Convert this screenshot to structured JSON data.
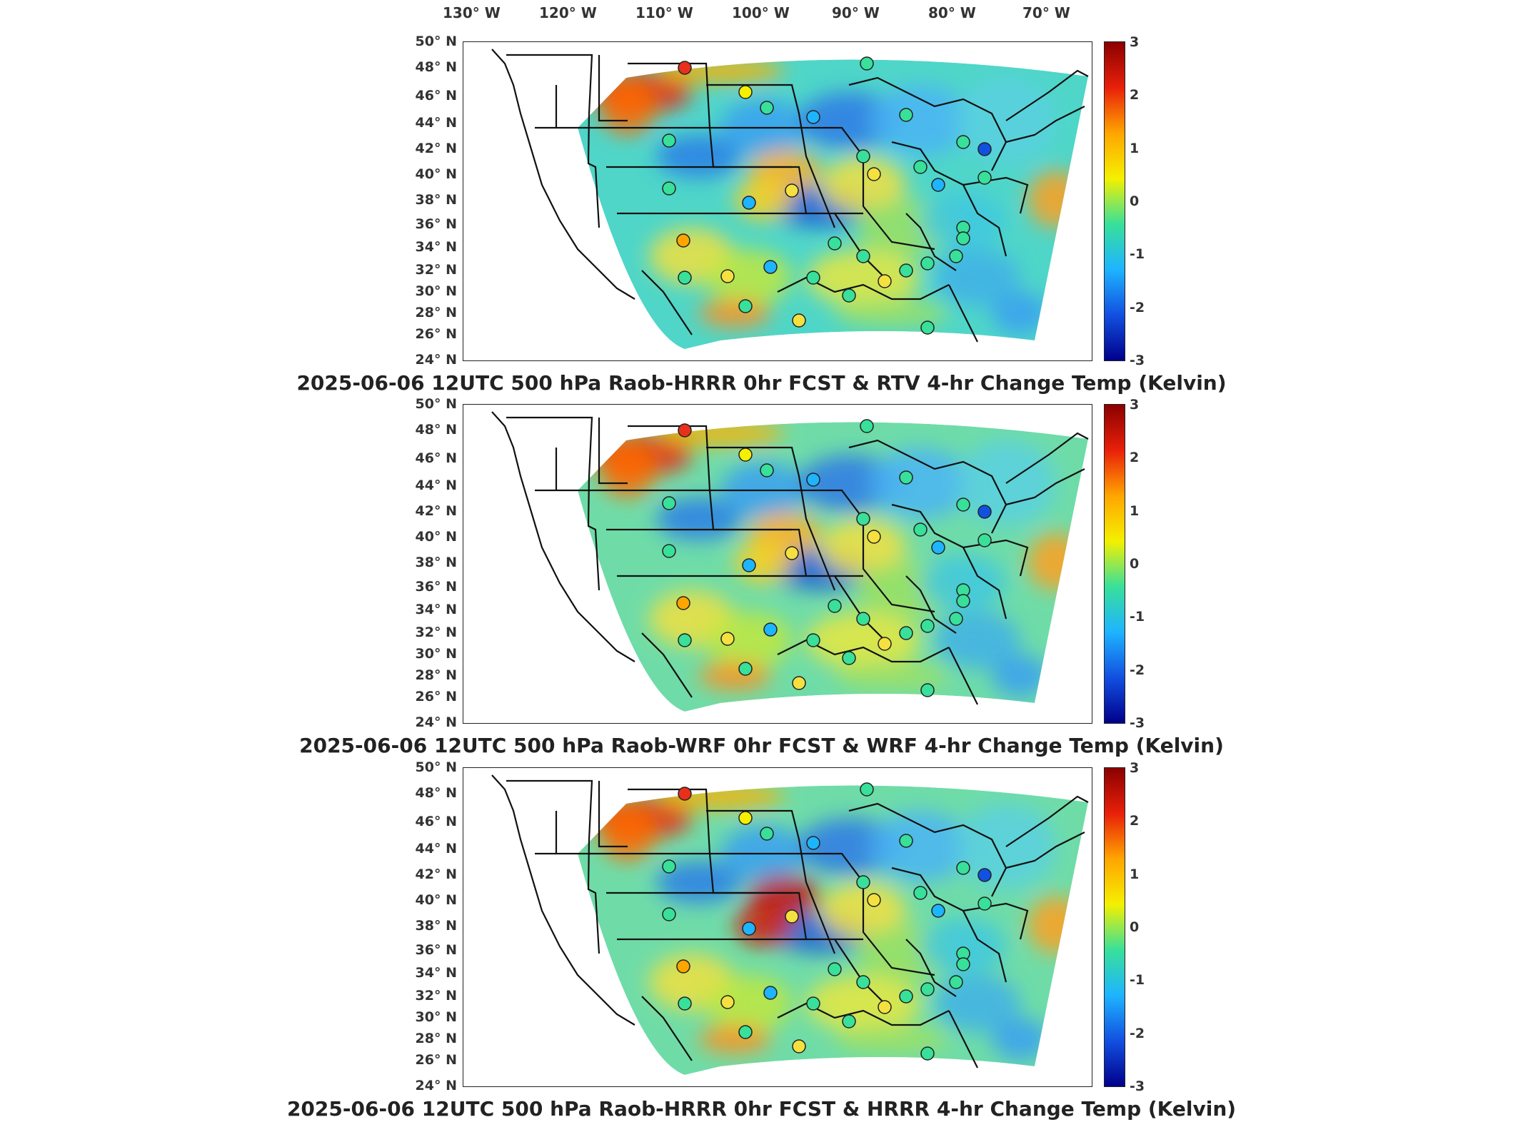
{
  "lon_labels": [
    "130° W",
    "120° W",
    "110° W",
    "100° W",
    "90° W",
    "80° W",
    "70° W"
  ],
  "lat_labels": [
    "50° N",
    "48° N",
    "46° N",
    "44° N",
    "42° N",
    "40° N",
    "38° N",
    "36° N",
    "34° N",
    "32° N",
    "30° N",
    "28° N",
    "26° N",
    "24° N"
  ],
  "colorbar": {
    "ticks": [
      "3",
      "2",
      "1",
      "0",
      "-1",
      "-2",
      "-3"
    ],
    "colors": [
      "#8b0000",
      "#e8200a",
      "#ffa500",
      "#f4f000",
      "#38e09a",
      "#1eb4ff",
      "#1250e0",
      "#00008b"
    ]
  },
  "panels": [
    {
      "title": "2025-06-06 12UTC 500 hPa Raob-HRRR 0hr FCST & RTV 4-hr Change Temp (Kelvin)"
    },
    {
      "title": "2025-06-06 12UTC 500 hPa Raob-WRF 0hr FCST & WRF 4-hr Change Temp (Kelvin)"
    },
    {
      "title": "2025-06-06 12UTC 500 hPa Raob-HRRR 0hr FCST & HRRR 4-hr Change Temp (Kelvin)"
    }
  ]
}
